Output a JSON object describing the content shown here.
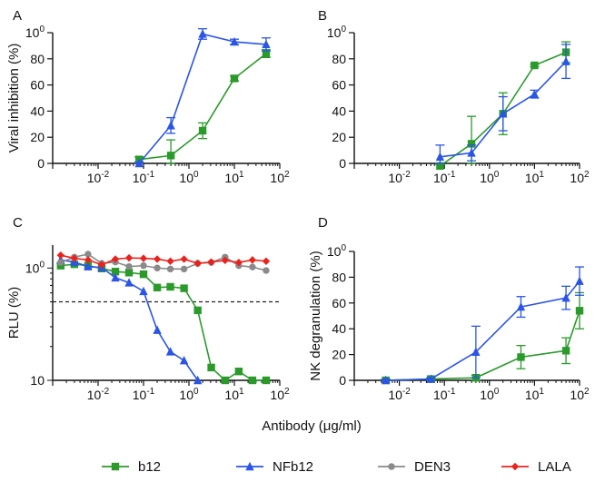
{
  "figure": {
    "shared_xlabel": "Antibody (μg/ml)",
    "legend": [
      {
        "name": "b12",
        "color": "#2a9a2a",
        "marker": "square"
      },
      {
        "name": "NFb12",
        "color": "#2a55e6",
        "marker": "triangle"
      },
      {
        "name": "DEN3",
        "color": "#8a8a8a",
        "marker": "circle"
      },
      {
        "name": "LALA",
        "color": "#e8231e",
        "marker": "diamond"
      }
    ]
  },
  "chart_data": [
    {
      "panel": "A",
      "type": "line",
      "ylabel": "Viral inhibition (%)",
      "xscale": "log",
      "xlim": [
        0.001,
        100
      ],
      "xticks": [
        "10-2",
        "10-1",
        "100",
        "101",
        "102"
      ],
      "ylim": [
        0,
        100
      ],
      "yticks": [
        "0",
        "20",
        "40",
        "60",
        "80",
        "100"
      ],
      "series": [
        {
          "name": "b12",
          "color": "#2a9a2a",
          "marker": "square",
          "x": [
            0.08,
            0.4,
            2,
            10,
            50
          ],
          "y": [
            3,
            6,
            25,
            65,
            84
          ],
          "err": [
            2,
            12,
            6,
            2,
            3
          ]
        },
        {
          "name": "NFb12",
          "color": "#2a55e6",
          "marker": "triangle",
          "x": [
            0.08,
            0.4,
            2,
            10,
            50
          ],
          "y": [
            0,
            29,
            99,
            93,
            91
          ],
          "err": [
            1,
            6,
            4,
            2,
            5
          ]
        }
      ]
    },
    {
      "panel": "B",
      "type": "line",
      "ylabel": "",
      "xscale": "log",
      "xlim": [
        0.001,
        100
      ],
      "xticks": [
        "10-2",
        "10-1",
        "100",
        "101",
        "102"
      ],
      "ylim": [
        0,
        100
      ],
      "yticks": [
        "0",
        "20",
        "40",
        "60",
        "80",
        "100"
      ],
      "series": [
        {
          "name": "b12",
          "color": "#2a9a2a",
          "marker": "square",
          "x": [
            0.08,
            0.4,
            2,
            10,
            50
          ],
          "y": [
            -2,
            15,
            38,
            75,
            85
          ],
          "err": [
            1,
            21,
            16,
            1,
            8
          ]
        },
        {
          "name": "NFb12",
          "color": "#2a55e6",
          "marker": "triangle",
          "x": [
            0.08,
            0.4,
            2,
            10,
            50
          ],
          "y": [
            5,
            8,
            38,
            53,
            78
          ],
          "err": [
            9,
            6,
            13,
            3,
            13
          ]
        }
      ]
    },
    {
      "panel": "C",
      "type": "line",
      "ylabel": "RLU (%)",
      "xscale": "log",
      "yscale": "log",
      "xlim": [
        0.001,
        100
      ],
      "xticks": [
        "10-2",
        "10-1",
        "100",
        "101",
        "102"
      ],
      "ylim": [
        10,
        160
      ],
      "yticks": [
        "10",
        "100"
      ],
      "reference_line": {
        "y": 50,
        "style": "dashed"
      },
      "series": [
        {
          "name": "b12",
          "color": "#2a9a2a",
          "marker": "square",
          "x": [
            0.0015,
            0.003,
            0.006,
            0.012,
            0.024,
            0.048,
            0.1,
            0.2,
            0.39,
            0.78,
            1.56,
            3.1,
            6.25,
            12.5,
            25,
            50
          ],
          "y": [
            105,
            108,
            105,
            99,
            93,
            91,
            88,
            67,
            68,
            66,
            42,
            13,
            10,
            12,
            10,
            10
          ]
        },
        {
          "name": "NFb12",
          "color": "#2a55e6",
          "marker": "triangle",
          "x": [
            0.0015,
            0.003,
            0.006,
            0.012,
            0.024,
            0.048,
            0.1,
            0.2,
            0.39,
            0.78,
            1.56
          ],
          "y": [
            118,
            113,
            103,
            101,
            82,
            74,
            62,
            28,
            18,
            15,
            10
          ]
        },
        {
          "name": "DEN3",
          "color": "#8a8a8a",
          "marker": "circle",
          "x": [
            0.0015,
            0.003,
            0.006,
            0.012,
            0.024,
            0.048,
            0.1,
            0.2,
            0.39,
            0.78,
            1.56,
            3.1,
            6.25,
            12.5,
            25,
            50
          ],
          "y": [
            112,
            125,
            133,
            110,
            113,
            103,
            105,
            100,
            98,
            98,
            110,
            112,
            125,
            105,
            102,
            95
          ]
        },
        {
          "name": "LALA",
          "color": "#e8231e",
          "marker": "diamond",
          "x": [
            0.0015,
            0.003,
            0.006,
            0.012,
            0.024,
            0.048,
            0.1,
            0.2,
            0.39,
            0.78,
            1.56,
            3.1,
            6.25,
            12.5,
            25,
            50
          ],
          "y": [
            130,
            122,
            118,
            107,
            120,
            123,
            122,
            120,
            115,
            120,
            110,
            113,
            117,
            112,
            118,
            115
          ]
        }
      ]
    },
    {
      "panel": "D",
      "type": "line",
      "ylabel": "NK degranulation (%)",
      "xscale": "log",
      "xlim": [
        0.001,
        100
      ],
      "xticks": [
        "10-2",
        "10-1",
        "100",
        "101",
        "102"
      ],
      "ylim": [
        0,
        100
      ],
      "yticks": [
        "0",
        "20",
        "40",
        "60",
        "80",
        "100"
      ],
      "series": [
        {
          "name": "b12",
          "color": "#2a9a2a",
          "marker": "square",
          "x": [
            0.005,
            0.05,
            0.5,
            5,
            50,
            100
          ],
          "y": [
            0,
            1,
            2,
            18,
            23,
            54
          ],
          "err": [
            1,
            1,
            2,
            9,
            10,
            14
          ]
        },
        {
          "name": "NFb12",
          "color": "#2a55e6",
          "marker": "triangle",
          "x": [
            0.005,
            0.05,
            0.5,
            5,
            50,
            100
          ],
          "y": [
            0,
            1,
            22,
            57,
            64,
            77
          ],
          "err": [
            1,
            1,
            20,
            8,
            9,
            11
          ]
        }
      ]
    }
  ]
}
